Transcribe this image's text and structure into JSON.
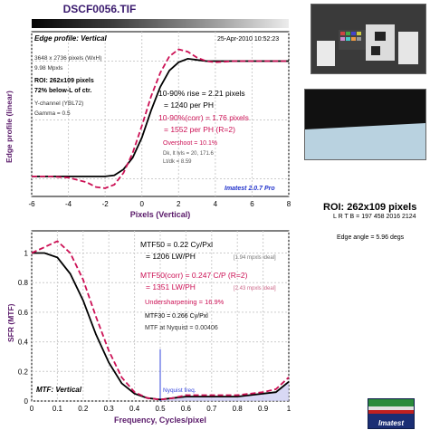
{
  "file_title": "DSCF0056.TIF",
  "edge_panel": {
    "label": "Edge profile: Vertical",
    "timestamp": "25-Apr-2010 10:52:23",
    "pixels": "3648 x 2736 pixels (WxH)",
    "mpxls": "9.98 Mpxls",
    "roi": "ROI: 262x109 pixels",
    "position": "72% below-L of ctr.",
    "channel": "Y-channel (YBL72)",
    "gamma": "Gamma = 0.5",
    "rise": "10-90% rise = 2.21 pixels",
    "rise_ph": "= 1240 per PH",
    "rise_corr": "10-90%(corr) = 1.76 pixels",
    "rise_corr_ph": "= 1552 per PH  (R=2)",
    "overshoot": "Overshoot = 10.1%",
    "dk_lt": "Dk, lt lvls = 20, 171.6",
    "ltdk": "Lt/dk = 8.59",
    "version": "Imatest 2.0.7 Pro",
    "ylabel": "Edge profile (linear)",
    "xlabel": "Pixels (Vertical)"
  },
  "mtf_panel": {
    "label": "MTF: Vertical",
    "mtf50": "MTF50 = 0.22 Cy/Pxl",
    "mtf50_lw": "= 1206 LW/PH",
    "mtf50_ideal": "[1.94 mpxls ideal]",
    "mtf50_corr": "MTF50(corr) = 0.247 C/P  (R=2)",
    "mtf50_corr_lw": "= 1351 LW/PH",
    "mtf50_corr_ideal": "[2.43 mpxls ideal]",
    "undersharp": "Undersharpening = 16.9%",
    "mtf30": "MTF30 = 0.266 Cy/Pxl",
    "nyquist_val": "MTF at Nyquist = 0.00406",
    "nyquist_label": "Nyquist freq.",
    "ylabel": "SFR (MTF)",
    "xlabel": "Frequency, Cycles/pixel"
  },
  "side": {
    "roi": "ROI: 262x109 pixels",
    "lrtb": "L R T B = 197 458  2016 2124",
    "edge_angle": "Edge angle = 5.96 degs"
  },
  "logo_text": "Imatest",
  "colors": {
    "measured": "#000000",
    "corrected": "#cc1155",
    "label_blue": "#2233cc",
    "nyquist": "#3344dd"
  },
  "chart_data": [
    {
      "type": "line",
      "title": "Edge profile: Vertical",
      "xlabel": "Pixels (Vertical)",
      "ylabel": "Edge profile (linear)",
      "xlim": [
        -6,
        8
      ],
      "xticks": [
        -6,
        -4,
        -2,
        0,
        2,
        4,
        6,
        8
      ],
      "grid": true,
      "series": [
        {
          "style": "solid",
          "color": "#000000",
          "x": [
            -6,
            -5,
            -4,
            -3,
            -2.5,
            -2,
            -1.5,
            -1,
            -0.5,
            0,
            0.5,
            1,
            1.5,
            2,
            2.5,
            3,
            3.5,
            4,
            5,
            6,
            7,
            8
          ],
          "y": [
            0.02,
            0.02,
            0.02,
            0.02,
            0.02,
            0.02,
            0.03,
            0.08,
            0.18,
            0.35,
            0.58,
            0.78,
            0.92,
            0.99,
            1.02,
            1.01,
            1.0,
            1.0,
            1.0,
            1.0,
            1.0,
            1.0
          ]
        },
        {
          "style": "dashed",
          "color": "#cc1155",
          "x": [
            -6,
            -5,
            -4,
            -3,
            -2.5,
            -2,
            -1.5,
            -1,
            -0.5,
            0,
            0.5,
            1,
            1.5,
            2,
            2.5,
            3,
            3.5,
            4,
            5,
            6,
            7,
            8
          ],
          "y": [
            0.02,
            0.02,
            0.01,
            -0.03,
            -0.07,
            -0.08,
            -0.05,
            0.05,
            0.22,
            0.45,
            0.7,
            0.9,
            1.04,
            1.1,
            1.08,
            1.03,
            1.0,
            0.99,
            1.0,
            1.0,
            1.0,
            1.0
          ]
        }
      ]
    },
    {
      "type": "line",
      "title": "MTF: Vertical",
      "xlabel": "Frequency, Cycles/pixel",
      "ylabel": "SFR (MTF)",
      "xlim": [
        0,
        1
      ],
      "ylim": [
        0,
        1.15
      ],
      "xticks": [
        0,
        0.1,
        0.2,
        0.3,
        0.4,
        0.5,
        0.6,
        0.7,
        0.8,
        0.9,
        1
      ],
      "yticks": [
        0,
        0.2,
        0.4,
        0.6,
        0.8,
        1
      ],
      "grid": true,
      "series": [
        {
          "style": "solid",
          "color": "#000000",
          "x": [
            0,
            0.05,
            0.1,
            0.15,
            0.2,
            0.25,
            0.3,
            0.35,
            0.4,
            0.45,
            0.5,
            0.55,
            0.6,
            0.7,
            0.8,
            0.9,
            0.95,
            1.0
          ],
          "y": [
            1.0,
            1.0,
            0.97,
            0.86,
            0.68,
            0.45,
            0.26,
            0.12,
            0.05,
            0.02,
            0.01,
            0.02,
            0.03,
            0.03,
            0.03,
            0.05,
            0.06,
            0.13
          ]
        },
        {
          "style": "dashed",
          "color": "#cc1155",
          "x": [
            0,
            0.05,
            0.1,
            0.15,
            0.2,
            0.25,
            0.3,
            0.35,
            0.4,
            0.45,
            0.5,
            0.55,
            0.6,
            0.7,
            0.8,
            0.9,
            0.95,
            1.0
          ],
          "y": [
            1.0,
            1.04,
            1.08,
            1.0,
            0.82,
            0.57,
            0.34,
            0.16,
            0.06,
            0.02,
            0.01,
            0.02,
            0.04,
            0.04,
            0.04,
            0.06,
            0.08,
            0.16
          ]
        }
      ],
      "annotations": [
        "Nyquist freq. at 0.5"
      ]
    }
  ]
}
